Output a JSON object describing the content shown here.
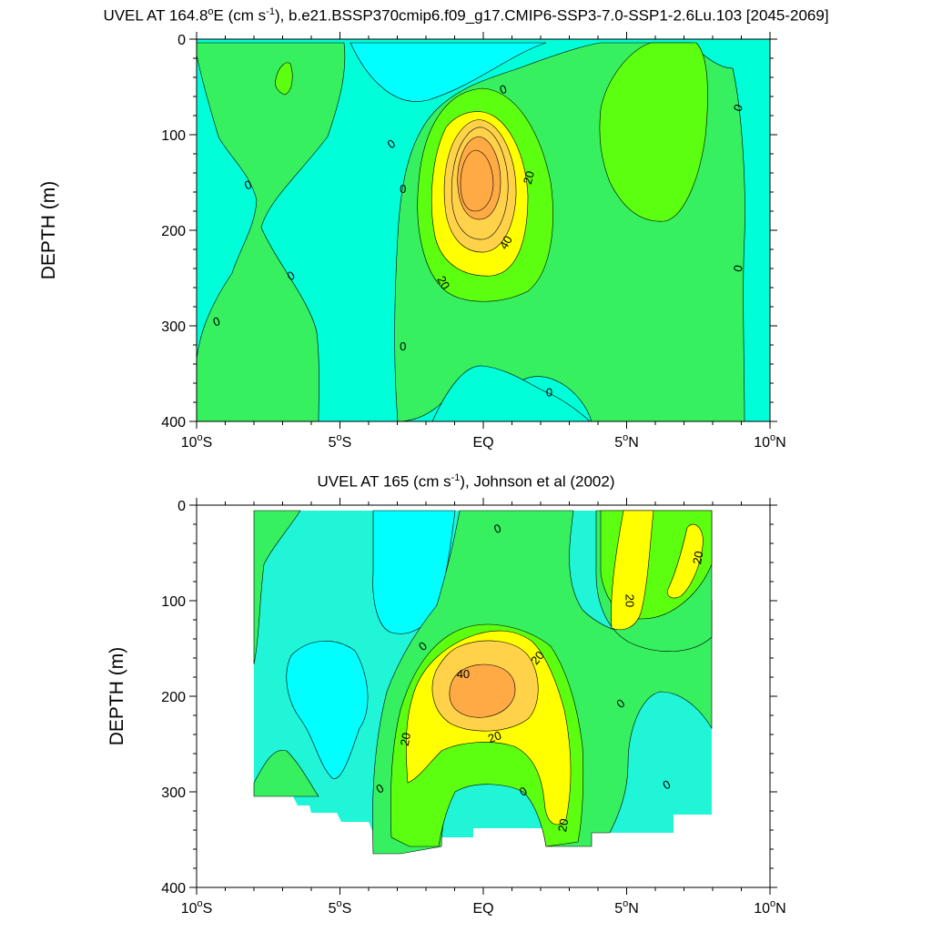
{
  "chart_data": [
    {
      "type": "contour",
      "title_parts": [
        "UVEL AT 164.8",
        "o",
        "E (cm s",
        "-1",
        "), b.e21.BSSP370cmip6.f09_g17.CMIP6-SSP3-7.0-SSP1-2.6Lu.103 [2045-2069]"
      ],
      "xlabel": "",
      "ylabel": "DEPTH (m)",
      "xlim": [
        -10,
        10
      ],
      "ylim": [
        400,
        0
      ],
      "x_ticks": [
        {
          "value": -10,
          "num": "10",
          "sup": "o",
          "dir": "S"
        },
        {
          "value": -5,
          "num": "5",
          "sup": "o",
          "dir": "S"
        },
        {
          "value": 0,
          "num": "EQ",
          "sup": "",
          "dir": ""
        },
        {
          "value": 5,
          "num": "5",
          "sup": "o",
          "dir": "N"
        },
        {
          "value": 10,
          "num": "10",
          "sup": "o",
          "dir": "N"
        }
      ],
      "y_ticks": [
        "0",
        "100",
        "200",
        "300",
        "400"
      ],
      "contour_levels": [
        -10,
        0,
        10,
        20,
        30,
        40,
        50
      ],
      "contour_labels": [
        {
          "text": "0",
          "x": -3.2,
          "y": 110,
          "rot": -35
        },
        {
          "text": "0",
          "x": -8.2,
          "y": 153,
          "rot": -20
        },
        {
          "text": "0",
          "x": -6.7,
          "y": 248,
          "rot": -30
        },
        {
          "text": "0",
          "x": -9.3,
          "y": 296,
          "rot": -20
        },
        {
          "text": "0",
          "x": -2.8,
          "y": 157,
          "rot": 0
        },
        {
          "text": "0",
          "x": -2.8,
          "y": 322,
          "rot": 0
        },
        {
          "text": "0",
          "x": 0.7,
          "y": 53,
          "rot": -20
        },
        {
          "text": "0",
          "x": 2.3,
          "y": 370,
          "rot": 0
        },
        {
          "text": "0",
          "x": 8.9,
          "y": 72,
          "rot": -70
        },
        {
          "text": "0",
          "x": 8.9,
          "y": 240,
          "rot": -80
        },
        {
          "text": "20",
          "x": 1.6,
          "y": 145,
          "rot": -75
        },
        {
          "text": "40",
          "x": 0.8,
          "y": 213,
          "rot": -60
        },
        {
          "text": "20",
          "x": -1.4,
          "y": 255,
          "rot": 60
        }
      ]
    },
    {
      "type": "contour",
      "title_parts": [
        "UVEL AT 165 (cm s",
        "-1",
        "), Johnson et al (2002)"
      ],
      "xlabel": "",
      "ylabel": "DEPTH (m)",
      "xlim": [
        -10,
        10
      ],
      "ylim": [
        400,
        0
      ],
      "x_ticks": [
        {
          "value": -10,
          "num": "10",
          "sup": "o",
          "dir": "S"
        },
        {
          "value": -5,
          "num": "5",
          "sup": "o",
          "dir": "S"
        },
        {
          "value": 0,
          "num": "EQ",
          "sup": "",
          "dir": ""
        },
        {
          "value": 5,
          "num": "5",
          "sup": "o",
          "dir": "N"
        },
        {
          "value": 10,
          "num": "10",
          "sup": "o",
          "dir": "N"
        }
      ],
      "y_ticks": [
        "0",
        "100",
        "200",
        "300",
        "400"
      ],
      "contour_levels": [
        -10,
        0,
        10,
        20,
        30,
        40
      ],
      "contour_labels": [
        {
          "text": "0",
          "x": 0.5,
          "y": 25,
          "rot": -20
        },
        {
          "text": "20",
          "x": 7.5,
          "y": 55,
          "rot": -80
        },
        {
          "text": "20",
          "x": 5.1,
          "y": 100,
          "rot": 90
        },
        {
          "text": "0",
          "x": -2.1,
          "y": 148,
          "rot": -40
        },
        {
          "text": "20",
          "x": 1.9,
          "y": 160,
          "rot": -50
        },
        {
          "text": "40",
          "x": -0.7,
          "y": 177,
          "rot": 0
        },
        {
          "text": "0",
          "x": 4.8,
          "y": 208,
          "rot": -40
        },
        {
          "text": "20",
          "x": -2.7,
          "y": 245,
          "rot": -80
        },
        {
          "text": "20",
          "x": 0.4,
          "y": 243,
          "rot": -20
        },
        {
          "text": "0",
          "x": -3.6,
          "y": 297,
          "rot": -30
        },
        {
          "text": "0",
          "x": 1.4,
          "y": 300,
          "rot": -30
        },
        {
          "text": "0",
          "x": 6.4,
          "y": 293,
          "rot": -30
        },
        {
          "text": "20",
          "x": 2.8,
          "y": 335,
          "rot": -80
        }
      ]
    }
  ],
  "colors": {
    "fill_lt_neg10": "#00ffe0",
    "fill_neg10_0": "#00f0c8",
    "fill_0_10": "#2be06d",
    "fill_10_20": "#5bff00",
    "fill_20_30": "#ffff00",
    "fill_30_40": "#ffd630",
    "fill_gt_40": "#ffa840",
    "cyan_bright": "#00ffff",
    "aqua": "#20f5d8",
    "green_light": "#36f060",
    "lime": "#5cff10",
    "yellow": "#ffff00",
    "gold": "#ffd24a",
    "orange": "#ffaa44",
    "contour_line": "#000000"
  }
}
